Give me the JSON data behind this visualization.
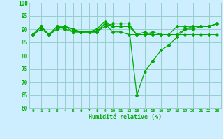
{
  "xlabel": "Humidité relative (%)",
  "bg_color": "#cceeff",
  "grid_color": "#99cccc",
  "line_color": "#00aa00",
  "xlim": [
    -0.5,
    23.5
  ],
  "ylim": [
    60,
    100
  ],
  "yticks": [
    60,
    65,
    70,
    75,
    80,
    85,
    90,
    95,
    100
  ],
  "xtick_labels": [
    "0",
    "1",
    "2",
    "3",
    "4",
    "5",
    "6",
    "7",
    "8",
    "9",
    "10",
    "11",
    "12",
    "13",
    "14",
    "15",
    "16",
    "17",
    "18",
    "19",
    "20",
    "21",
    "22",
    "23"
  ],
  "series": [
    [
      88,
      90,
      88,
      90,
      91,
      89,
      89,
      89,
      89,
      92,
      89,
      89,
      88,
      88,
      88,
      88,
      88,
      88,
      88,
      88,
      88,
      88,
      88,
      88
    ],
    [
      88,
      91,
      88,
      90,
      91,
      90,
      89,
      89,
      90,
      93,
      91,
      91,
      91,
      65,
      74,
      78,
      82,
      84,
      87,
      90,
      91,
      91,
      91,
      92
    ],
    [
      88,
      91,
      88,
      91,
      90,
      89,
      89,
      89,
      89,
      91,
      92,
      92,
      92,
      88,
      88,
      89,
      88,
      88,
      91,
      91,
      91,
      91,
      91,
      92
    ],
    [
      88,
      91,
      88,
      91,
      91,
      90,
      89,
      89,
      89,
      92,
      91,
      91,
      91,
      88,
      89,
      88,
      88,
      88,
      88,
      90,
      90,
      91,
      91,
      92
    ]
  ]
}
